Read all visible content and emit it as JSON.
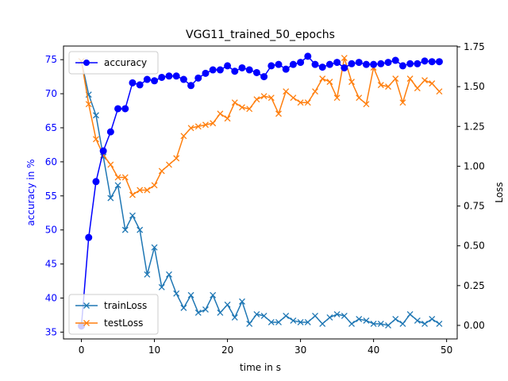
{
  "chart_data": {
    "type": "line",
    "title": "VGG11_trained_50_epochs",
    "xlabel": "time in s",
    "ylabel_left": "accuracy in %",
    "ylabel_right": "Loss",
    "xlim": [
      -2.45,
      51.45
    ],
    "ylim_left": [
      34.0,
      77.0
    ],
    "ylim_right": [
      -0.085,
      1.755
    ],
    "x_ticks": [
      0,
      10,
      20,
      30,
      40,
      50
    ],
    "y_ticks_left": [
      35,
      40,
      45,
      50,
      55,
      60,
      65,
      70,
      75
    ],
    "y_ticks_right": [
      0.0,
      0.25,
      0.5,
      0.75,
      1.0,
      1.25,
      1.5,
      1.75
    ],
    "colors": {
      "accuracy": "#0000ff",
      "trainLoss": "#1f77b4",
      "testLoss": "#ff7f0e",
      "left_axis_text": "#0000ff"
    },
    "legend_top": {
      "position": "upper-left",
      "entries": [
        "accuracy"
      ]
    },
    "legend_bottom": {
      "position": "lower-left",
      "entries": [
        "trainLoss",
        "testLoss"
      ]
    },
    "grid": false,
    "x": [
      0,
      1,
      2,
      3,
      4,
      5,
      6,
      7,
      8,
      9,
      10,
      11,
      12,
      13,
      14,
      15,
      16,
      17,
      18,
      19,
      20,
      21,
      22,
      23,
      24,
      25,
      26,
      27,
      28,
      29,
      30,
      31,
      32,
      33,
      34,
      35,
      36,
      37,
      38,
      39,
      40,
      41,
      42,
      43,
      44,
      45,
      46,
      47,
      48,
      49
    ],
    "series": [
      {
        "name": "accuracy",
        "axis": "left",
        "marker": "o",
        "values": [
          35.9,
          48.9,
          57.1,
          61.6,
          64.4,
          67.8,
          67.8,
          71.6,
          71.3,
          72.1,
          71.9,
          72.4,
          72.6,
          72.6,
          72.1,
          71.2,
          72.3,
          73.0,
          73.5,
          73.5,
          74.1,
          73.3,
          73.8,
          73.5,
          73.1,
          72.5,
          74.1,
          74.3,
          73.6,
          74.3,
          74.6,
          75.5,
          74.3,
          73.9,
          74.3,
          74.6,
          73.8,
          74.4,
          74.6,
          74.3,
          74.3,
          74.4,
          74.6,
          74.9,
          74.1,
          74.4,
          74.4,
          74.8,
          74.7,
          74.7
        ]
      },
      {
        "name": "trainLoss",
        "axis": "right",
        "marker": "x",
        "values": [
          1.66,
          1.45,
          1.32,
          1.06,
          0.8,
          0.88,
          0.6,
          0.69,
          0.6,
          0.32,
          0.49,
          0.24,
          0.32,
          0.2,
          0.11,
          0.19,
          0.08,
          0.1,
          0.19,
          0.08,
          0.13,
          0.05,
          0.15,
          0.01,
          0.07,
          0.06,
          0.02,
          0.02,
          0.06,
          0.03,
          0.02,
          0.02,
          0.06,
          0.01,
          0.05,
          0.07,
          0.06,
          0.01,
          0.04,
          0.03,
          0.01,
          0.01,
          0.0,
          0.04,
          0.01,
          0.07,
          0.03,
          0.01,
          0.04,
          0.01
        ]
      },
      {
        "name": "testLoss",
        "axis": "right",
        "marker": "x",
        "values": [
          1.66,
          1.39,
          1.17,
          1.07,
          1.01,
          0.93,
          0.93,
          0.82,
          0.85,
          0.85,
          0.88,
          0.97,
          1.01,
          1.05,
          1.19,
          1.24,
          1.25,
          1.26,
          1.27,
          1.33,
          1.3,
          1.4,
          1.37,
          1.36,
          1.42,
          1.44,
          1.43,
          1.33,
          1.47,
          1.43,
          1.4,
          1.4,
          1.47,
          1.55,
          1.53,
          1.43,
          1.68,
          1.53,
          1.43,
          1.39,
          1.62,
          1.51,
          1.5,
          1.55,
          1.4,
          1.55,
          1.49,
          1.54,
          1.52,
          1.47
        ]
      }
    ]
  }
}
